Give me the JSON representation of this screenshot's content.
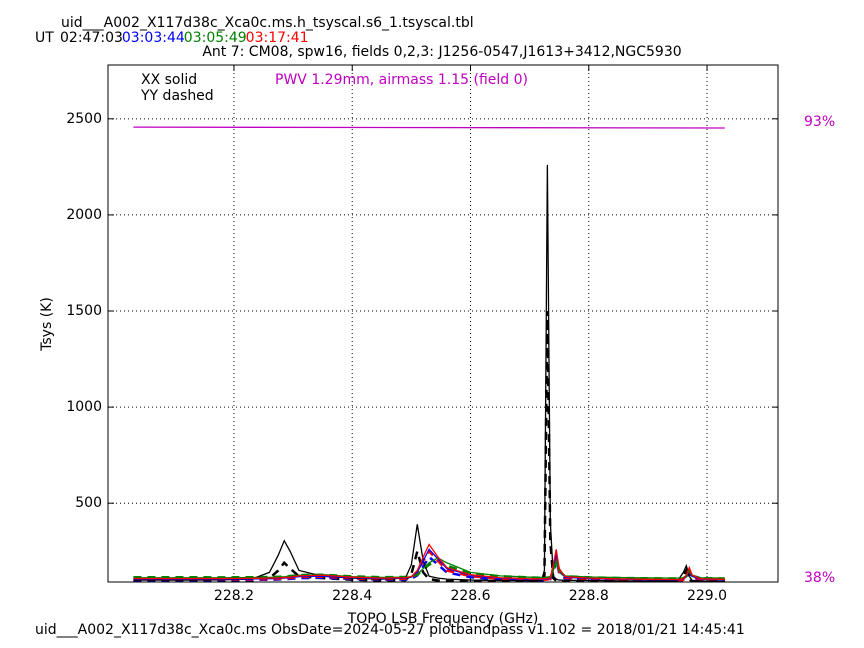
{
  "chart_data": {
    "type": "line",
    "title": "uid___A002_X117d38c_Xca0c.ms.h_tsyscal.s6_1.tsyscal.tbl",
    "time_prefix": "UT",
    "subtitle": "Ant 7: CM08,  spw16,  fields 0,2,3: J1256-0547,J1613+3412,NGC5930",
    "legend_solid": "XX solid",
    "legend_dashed": "YY dashed",
    "annotation": "PWV 1.29mm, airmass 1.15 (field 0)",
    "annotation_color": "#c000c0",
    "xlabel": "TOPO LSB Frequency (GHz)",
    "ylabel": "Tsys (K)",
    "footer": "uid___A002_X117d38c_Xca0c.ms  ObsDate=2024-05-27   plotbandpass v1.102 = 2018/01/21 14:45:41",
    "xlim": [
      227.987,
      229.12
    ],
    "ylim": [
      90,
      2780
    ],
    "y2lim": [
      37.5,
      99.9
    ],
    "xticks": [
      228.2,
      228.4,
      228.6,
      228.8,
      {
        "value": 229,
        "label": "229.0"
      }
    ],
    "yticks": [
      500,
      1000,
      1500,
      2000,
      2500
    ],
    "y2ticks": [
      {
        "value": 93,
        "label": "93%"
      },
      {
        "value": 38,
        "label": "38%"
      }
    ],
    "grid": true,
    "x": [
      228.03,
      228.08,
      228.13,
      228.18,
      228.23,
      228.26,
      228.275,
      228.285,
      228.295,
      228.31,
      228.35,
      228.4,
      228.45,
      228.49,
      228.5,
      228.51,
      228.52,
      228.53,
      228.545,
      228.56,
      228.6,
      228.65,
      228.7,
      228.72,
      228.725,
      228.73,
      228.735,
      228.74,
      228.745,
      228.75,
      228.76,
      228.8,
      228.85,
      228.9,
      228.95,
      228.96,
      228.965,
      228.97,
      228.975,
      228.99,
      229.03
    ],
    "series": [
      {
        "name": "02:47:03",
        "color": "#000000",
        "xx": [
          100,
          100,
          100,
          101,
          105,
          140,
          230,
          305,
          250,
          150,
          120,
          110,
          105,
          110,
          180,
          390,
          200,
          120,
          110,
          105,
          100,
          98,
          97,
          98,
          150,
          2260,
          400,
          120,
          105,
          100,
          99,
          98,
          96,
          95,
          96,
          140,
          175,
          120,
          98,
          95,
          94
        ],
        "yy": [
          95,
          95,
          95,
          95,
          97,
          110,
          150,
          190,
          160,
          120,
          110,
          102,
          98,
          100,
          130,
          250,
          140,
          105,
          98,
          95,
          93,
          92,
          92,
          93,
          120,
          1500,
          300,
          110,
          96,
          94,
          93,
          92,
          91,
          90,
          91,
          120,
          150,
          105,
          92,
          90,
          90
        ]
      },
      {
        "name": "03:03:44",
        "color": "#0000ff",
        "xx": [
          105,
          105,
          105,
          105,
          106,
          107,
          108,
          110,
          112,
          118,
          120,
          112,
          108,
          110,
          115,
          140,
          200,
          260,
          210,
          160,
          125,
          110,
          105,
          104,
          105,
          106,
          110,
          170,
          240,
          150,
          115,
          108,
          104,
          102,
          101,
          105,
          120,
          150,
          120,
          104,
          102
        ],
        "yy": [
          100,
          100,
          100,
          100,
          101,
          102,
          103,
          105,
          106,
          110,
          112,
          106,
          102,
          103,
          107,
          125,
          170,
          220,
          180,
          140,
          115,
          104,
          100,
          99,
          100,
          101,
          104,
          150,
          210,
          135,
          108,
          102,
          99,
          97,
          96,
          100,
          112,
          140,
          112,
          99,
          97
        ]
      },
      {
        "name": "03:05:49",
        "color": "#008000",
        "xx": [
          112,
          112,
          112,
          112,
          113,
          114,
          115,
          117,
          119,
          125,
          128,
          118,
          114,
          115,
          118,
          130,
          160,
          190,
          215,
          190,
          140,
          122,
          115,
          113,
          113,
          114,
          116,
          150,
          200,
          150,
          122,
          116,
          113,
          111,
          110,
          112,
          122,
          150,
          125,
          112,
          110
        ],
        "yy": [
          115,
          115,
          115,
          114,
          115,
          116,
          117,
          119,
          121,
          126,
          128,
          119,
          115,
          116,
          119,
          128,
          155,
          180,
          200,
          175,
          135,
          120,
          114,
          112,
          112,
          113,
          115,
          145,
          190,
          145,
          120,
          114,
          111,
          109,
          108,
          110,
          120,
          145,
          122,
          110,
          108
        ]
      },
      {
        "name": "03:17:41",
        "color": "#ff0000",
        "xx": [
          108,
          108,
          108,
          108,
          109,
          110,
          111,
          113,
          115,
          122,
          125,
          115,
          110,
          112,
          118,
          150,
          220,
          285,
          220,
          165,
          128,
          112,
          107,
          106,
          107,
          108,
          112,
          180,
          260,
          160,
          118,
          110,
          106,
          104,
          103,
          107,
          125,
          165,
          125,
          106,
          104
        ],
        "yy": [
          103,
          103,
          103,
          103,
          104,
          105,
          106,
          108,
          110,
          116,
          118,
          109,
          105,
          107,
          112,
          140,
          200,
          250,
          200,
          150,
          120,
          107,
          102,
          101,
          102,
          103,
          107,
          165,
          230,
          145,
          112,
          105,
          101,
          99,
          98,
          102,
          118,
          150,
          118,
          101,
          99
        ]
      }
    ],
    "transmission": {
      "color": "#c000c0",
      "axis": "y2",
      "x": [
        228.03,
        229.03
      ],
      "values": [
        92.4,
        92.3
      ]
    }
  }
}
